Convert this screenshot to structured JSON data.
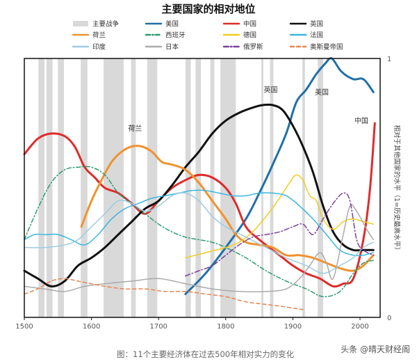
{
  "chart_data": {
    "type": "line",
    "title": "主要国家的相对地位",
    "caption": "图：11个主要经济体在过去500年相对实力的变化",
    "ylabel": "相对于其他国家的水平（1=历史最高水平）",
    "x_ticks": [
      "1500",
      "1600",
      "1700",
      "1800",
      "1900",
      "2000"
    ],
    "y_ticks": [
      "1",
      "0"
    ],
    "xlim": [
      1500,
      2030
    ],
    "ylim": [
      0,
      1
    ],
    "grid": false,
    "legend_position": "top",
    "wars": {
      "name": "主要战争",
      "color": "#d9d9d9",
      "intervals": [
        [
          1521,
          1530
        ],
        [
          1533,
          1542
        ],
        [
          1550,
          1559
        ],
        [
          1584,
          1594
        ],
        [
          1618,
          1648
        ],
        [
          1659,
          1666
        ],
        [
          1683,
          1698
        ],
        [
          1740,
          1748
        ],
        [
          1755,
          1763
        ],
        [
          1777,
          1783
        ],
        [
          1792,
          1815
        ],
        [
          1853,
          1856
        ],
        [
          1866,
          1871
        ],
        [
          1914,
          1918
        ],
        [
          1937,
          1945
        ]
      ]
    },
    "annotations": [
      {
        "text": "荷兰",
        "x": 1665,
        "y": 0.72
      },
      {
        "text": "英国",
        "x": 1867,
        "y": 0.87
      },
      {
        "text": "美国",
        "x": 1943,
        "y": 0.86
      },
      {
        "text": "中国",
        "x": 2002,
        "y": 0.75
      }
    ],
    "series": [
      {
        "name": "美国",
        "color": "#1f6fa8",
        "width": 3,
        "dash": "",
        "points": [
          [
            1740,
            0.09
          ],
          [
            1770,
            0.17
          ],
          [
            1800,
            0.27
          ],
          [
            1830,
            0.38
          ],
          [
            1850,
            0.48
          ],
          [
            1870,
            0.59
          ],
          [
            1890,
            0.71
          ],
          [
            1905,
            0.83
          ],
          [
            1920,
            0.88
          ],
          [
            1935,
            0.94
          ],
          [
            1948,
            0.98
          ],
          [
            1958,
            1.0
          ],
          [
            1972,
            0.95
          ],
          [
            1990,
            0.92
          ],
          [
            2005,
            0.92
          ],
          [
            2020,
            0.87
          ]
        ]
      },
      {
        "name": "中国",
        "color": "#e02a2a",
        "width": 3,
        "dash": "",
        "points": [
          [
            1500,
            0.63
          ],
          [
            1520,
            0.69
          ],
          [
            1540,
            0.71
          ],
          [
            1560,
            0.7
          ],
          [
            1575,
            0.66
          ],
          [
            1590,
            0.58
          ],
          [
            1605,
            0.54
          ],
          [
            1620,
            0.5
          ],
          [
            1640,
            0.48
          ],
          [
            1660,
            0.44
          ],
          [
            1680,
            0.4
          ],
          [
            1700,
            0.45
          ],
          [
            1720,
            0.5
          ],
          [
            1740,
            0.53
          ],
          [
            1760,
            0.55
          ],
          [
            1780,
            0.54
          ],
          [
            1800,
            0.5
          ],
          [
            1815,
            0.44
          ],
          [
            1830,
            0.35
          ],
          [
            1850,
            0.3
          ],
          [
            1880,
            0.24
          ],
          [
            1900,
            0.2
          ],
          [
            1920,
            0.17
          ],
          [
            1940,
            0.15
          ],
          [
            1960,
            0.12
          ],
          [
            1975,
            0.13
          ],
          [
            1990,
            0.15
          ],
          [
            2005,
            0.3
          ],
          [
            2015,
            0.5
          ],
          [
            2022,
            0.75
          ]
        ]
      },
      {
        "name": "英国",
        "color": "#111111",
        "width": 3,
        "dash": "",
        "points": [
          [
            1500,
            0.18
          ],
          [
            1520,
            0.15
          ],
          [
            1540,
            0.12
          ],
          [
            1560,
            0.14
          ],
          [
            1580,
            0.2
          ],
          [
            1600,
            0.23
          ],
          [
            1620,
            0.27
          ],
          [
            1640,
            0.32
          ],
          [
            1660,
            0.37
          ],
          [
            1680,
            0.42
          ],
          [
            1700,
            0.45
          ],
          [
            1720,
            0.51
          ],
          [
            1740,
            0.58
          ],
          [
            1760,
            0.64
          ],
          [
            1780,
            0.71
          ],
          [
            1800,
            0.76
          ],
          [
            1820,
            0.79
          ],
          [
            1840,
            0.81
          ],
          [
            1855,
            0.82
          ],
          [
            1870,
            0.82
          ],
          [
            1885,
            0.8
          ],
          [
            1900,
            0.74
          ],
          [
            1915,
            0.66
          ],
          [
            1930,
            0.56
          ],
          [
            1945,
            0.43
          ],
          [
            1960,
            0.33
          ],
          [
            1975,
            0.28
          ],
          [
            1990,
            0.26
          ],
          [
            2005,
            0.26
          ],
          [
            2020,
            0.26
          ]
        ]
      },
      {
        "name": "荷兰",
        "color": "#f0922e",
        "width": 3,
        "dash": "",
        "points": [
          [
            1585,
            0.35
          ],
          [
            1600,
            0.45
          ],
          [
            1615,
            0.53
          ],
          [
            1630,
            0.6
          ],
          [
            1645,
            0.64
          ],
          [
            1660,
            0.66
          ],
          [
            1675,
            0.66
          ],
          [
            1690,
            0.64
          ],
          [
            1705,
            0.6
          ],
          [
            1720,
            0.59
          ],
          [
            1740,
            0.57
          ],
          [
            1760,
            0.52
          ],
          [
            1780,
            0.45
          ],
          [
            1800,
            0.38
          ],
          [
            1815,
            0.32
          ],
          [
            1830,
            0.29
          ],
          [
            1850,
            0.28
          ],
          [
            1870,
            0.27
          ],
          [
            1890,
            0.24
          ],
          [
            1910,
            0.24
          ],
          [
            1930,
            0.23
          ],
          [
            1950,
            0.21
          ],
          [
            1970,
            0.19
          ],
          [
            1990,
            0.18
          ],
          [
            2005,
            0.2
          ],
          [
            2020,
            0.24
          ]
        ]
      },
      {
        "name": "西班牙",
        "color": "#2a9d6f",
        "width": 1.5,
        "dash": "6 3 1.5 3",
        "points": [
          [
            1500,
            0.3
          ],
          [
            1520,
            0.42
          ],
          [
            1540,
            0.52
          ],
          [
            1560,
            0.57
          ],
          [
            1580,
            0.58
          ],
          [
            1600,
            0.58
          ],
          [
            1620,
            0.55
          ],
          [
            1640,
            0.48
          ],
          [
            1660,
            0.44
          ],
          [
            1680,
            0.4
          ],
          [
            1700,
            0.36
          ],
          [
            1720,
            0.33
          ],
          [
            1740,
            0.31
          ],
          [
            1760,
            0.3
          ],
          [
            1780,
            0.29
          ],
          [
            1800,
            0.27
          ],
          [
            1830,
            0.23
          ],
          [
            1860,
            0.18
          ],
          [
            1890,
            0.14
          ],
          [
            1920,
            0.11
          ],
          [
            1945,
            0.08
          ],
          [
            1970,
            0.1
          ],
          [
            1990,
            0.17
          ],
          [
            2005,
            0.21
          ],
          [
            2020,
            0.22
          ]
        ]
      },
      {
        "name": "德国",
        "color": "#f2cd1a",
        "width": 1.5,
        "dash": "",
        "points": [
          [
            1740,
            0.23
          ],
          [
            1770,
            0.25
          ],
          [
            1800,
            0.27
          ],
          [
            1820,
            0.29
          ],
          [
            1840,
            0.33
          ],
          [
            1860,
            0.39
          ],
          [
            1880,
            0.46
          ],
          [
            1895,
            0.52
          ],
          [
            1905,
            0.55
          ],
          [
            1915,
            0.53
          ],
          [
            1925,
            0.47
          ],
          [
            1935,
            0.45
          ],
          [
            1945,
            0.38
          ],
          [
            1960,
            0.34
          ],
          [
            1975,
            0.37
          ],
          [
            1990,
            0.38
          ],
          [
            2005,
            0.37
          ],
          [
            2020,
            0.36
          ]
        ]
      },
      {
        "name": "法国",
        "color": "#39b6e0",
        "width": 1.5,
        "dash": "",
        "points": [
          [
            1500,
            0.3
          ],
          [
            1515,
            0.32
          ],
          [
            1530,
            0.32
          ],
          [
            1550,
            0.32
          ],
          [
            1570,
            0.3
          ],
          [
            1590,
            0.28
          ],
          [
            1610,
            0.32
          ],
          [
            1630,
            0.38
          ],
          [
            1650,
            0.42
          ],
          [
            1670,
            0.44
          ],
          [
            1690,
            0.46
          ],
          [
            1710,
            0.47
          ],
          [
            1730,
            0.48
          ],
          [
            1750,
            0.49
          ],
          [
            1770,
            0.49
          ],
          [
            1790,
            0.48
          ],
          [
            1810,
            0.47
          ],
          [
            1830,
            0.47
          ],
          [
            1850,
            0.48
          ],
          [
            1870,
            0.48
          ],
          [
            1890,
            0.47
          ],
          [
            1910,
            0.43
          ],
          [
            1930,
            0.38
          ],
          [
            1950,
            0.32
          ],
          [
            1970,
            0.26
          ],
          [
            1990,
            0.24
          ],
          [
            2005,
            0.24
          ],
          [
            2020,
            0.25
          ]
        ]
      },
      {
        "name": "印度",
        "color": "#9ccde3",
        "width": 1.5,
        "dash": "",
        "points": [
          [
            1500,
            0.27
          ],
          [
            1530,
            0.27
          ],
          [
            1560,
            0.28
          ],
          [
            1580,
            0.3
          ],
          [
            1600,
            0.35
          ],
          [
            1620,
            0.4
          ],
          [
            1640,
            0.45
          ],
          [
            1660,
            0.44
          ],
          [
            1680,
            0.41
          ],
          [
            1700,
            0.43
          ],
          [
            1720,
            0.47
          ],
          [
            1740,
            0.48
          ],
          [
            1760,
            0.45
          ],
          [
            1780,
            0.39
          ],
          [
            1800,
            0.35
          ],
          [
            1830,
            0.31
          ],
          [
            1860,
            0.27
          ],
          [
            1890,
            0.23
          ],
          [
            1920,
            0.2
          ],
          [
            1945,
            0.17
          ],
          [
            1970,
            0.2
          ],
          [
            1990,
            0.23
          ],
          [
            2005,
            0.27
          ],
          [
            2020,
            0.29
          ]
        ]
      },
      {
        "name": "日本",
        "color": "#aaaaaa",
        "width": 1.5,
        "dash": "",
        "points": [
          [
            1500,
            0.12
          ],
          [
            1530,
            0.11
          ],
          [
            1560,
            0.1
          ],
          [
            1590,
            0.12
          ],
          [
            1620,
            0.13
          ],
          [
            1660,
            0.14
          ],
          [
            1700,
            0.15
          ],
          [
            1740,
            0.13
          ],
          [
            1780,
            0.11
          ],
          [
            1820,
            0.1
          ],
          [
            1860,
            0.1
          ],
          [
            1890,
            0.11
          ],
          [
            1910,
            0.15
          ],
          [
            1925,
            0.2
          ],
          [
            1940,
            0.25
          ],
          [
            1950,
            0.21
          ],
          [
            1960,
            0.15
          ],
          [
            1975,
            0.32
          ],
          [
            1985,
            0.43
          ],
          [
            1995,
            0.41
          ],
          [
            2010,
            0.34
          ],
          [
            2020,
            0.3
          ]
        ]
      },
      {
        "name": "俄罗斯",
        "color": "#7a3f9e",
        "width": 1.5,
        "dash": "7 3 1.5 3",
        "points": [
          [
            1740,
            0.16
          ],
          [
            1760,
            0.18
          ],
          [
            1780,
            0.2
          ],
          [
            1800,
            0.24
          ],
          [
            1820,
            0.28
          ],
          [
            1840,
            0.31
          ],
          [
            1860,
            0.32
          ],
          [
            1880,
            0.33
          ],
          [
            1900,
            0.35
          ],
          [
            1915,
            0.36
          ],
          [
            1930,
            0.32
          ],
          [
            1945,
            0.38
          ],
          [
            1960,
            0.44
          ],
          [
            1975,
            0.48
          ],
          [
            1985,
            0.45
          ],
          [
            1995,
            0.3
          ],
          [
            2005,
            0.26
          ],
          [
            2020,
            0.24
          ]
        ]
      },
      {
        "name": "奥斯曼帝国",
        "color": "#e8844e",
        "width": 1.5,
        "dash": "5 4",
        "points": [
          [
            1500,
            0.09
          ],
          [
            1520,
            0.11
          ],
          [
            1540,
            0.14
          ],
          [
            1560,
            0.15
          ],
          [
            1580,
            0.14
          ],
          [
            1600,
            0.13
          ],
          [
            1620,
            0.12
          ],
          [
            1650,
            0.11
          ],
          [
            1680,
            0.11
          ],
          [
            1710,
            0.1
          ],
          [
            1740,
            0.1
          ],
          [
            1770,
            0.09
          ],
          [
            1800,
            0.08
          ],
          [
            1830,
            0.06
          ],
          [
            1860,
            0.05
          ],
          [
            1890,
            0.04
          ],
          [
            1915,
            0.03
          ]
        ]
      }
    ]
  },
  "watermark": "头条 @晴天财经阁"
}
